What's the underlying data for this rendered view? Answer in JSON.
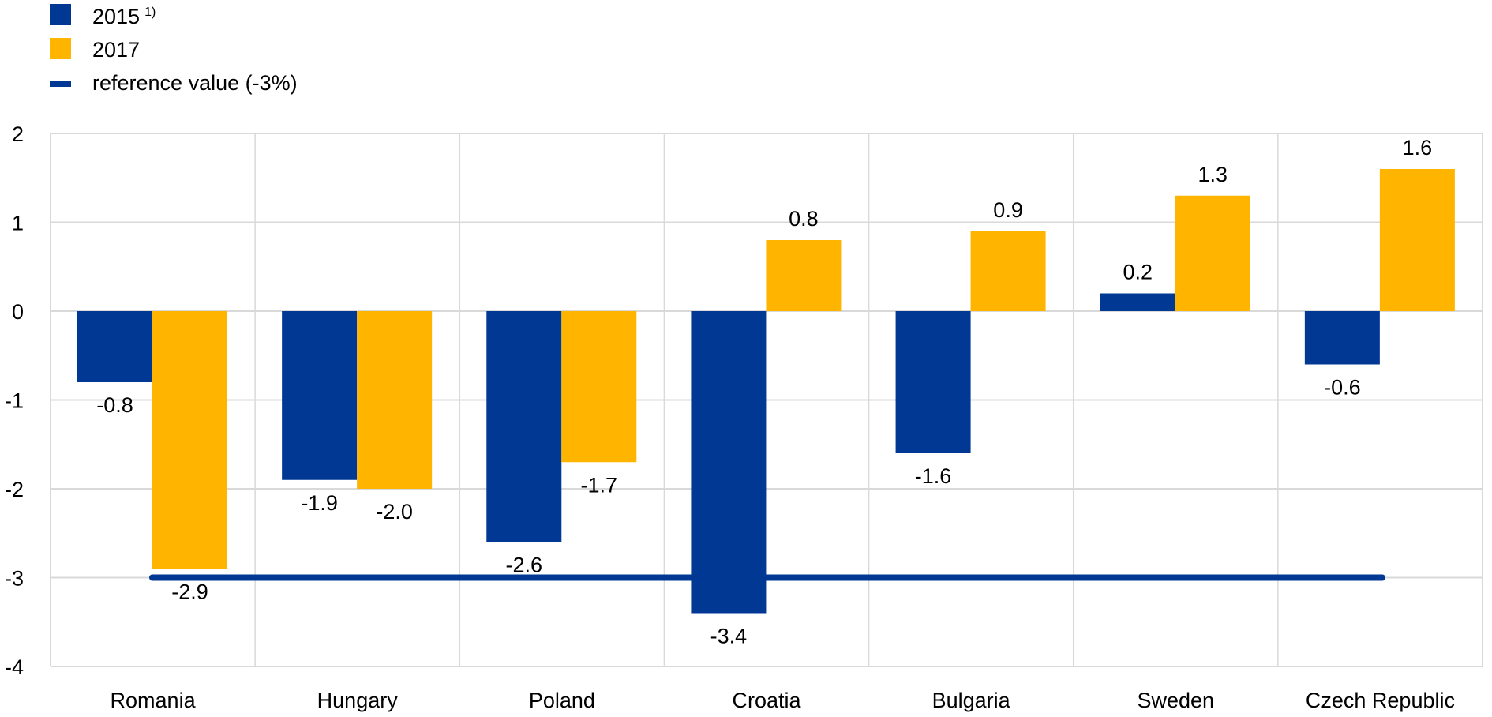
{
  "chart_data": {
    "type": "bar",
    "categories": [
      "Romania",
      "Hungary",
      "Poland",
      "Croatia",
      "Bulgaria",
      "Sweden",
      "Czech Republic"
    ],
    "series": [
      {
        "name": "2015",
        "footnote": "1)",
        "color": "#003894",
        "values": [
          -0.8,
          -1.9,
          -2.6,
          -3.4,
          -1.6,
          0.2,
          -0.6
        ]
      },
      {
        "name": "2017",
        "color": "#FFB400",
        "values": [
          -2.9,
          -2.0,
          -1.7,
          0.8,
          0.9,
          1.3,
          1.6
        ]
      }
    ],
    "reference": {
      "name": "reference value (-3%)",
      "value": -3,
      "color": "#003894"
    },
    "ylim": [
      -4,
      2
    ],
    "yticks": [
      "2",
      "1",
      "0",
      "-1",
      "-2",
      "-3",
      "-4"
    ],
    "grid": true,
    "legend": "top-left",
    "title": "",
    "xlabel": "",
    "ylabel": ""
  }
}
